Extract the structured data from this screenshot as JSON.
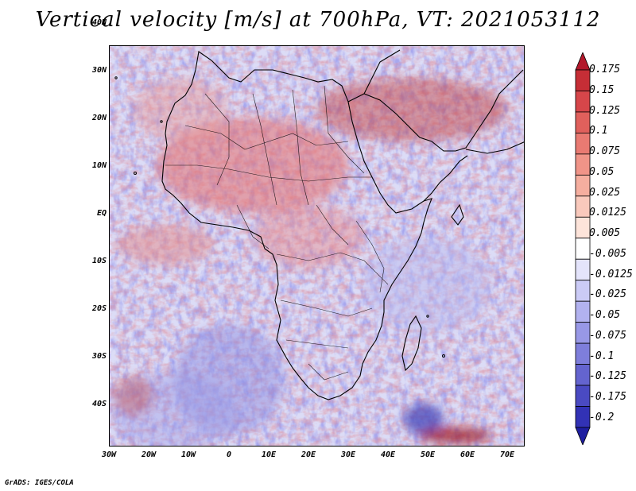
{
  "title": "Vertical velocity [m/s] at 700hPa, VT: 2021053112",
  "credit": "GrADS: IGES/COLA",
  "axes": {
    "lat_ticks": [
      "40N",
      "30N",
      "20N",
      "10N",
      "EQ",
      "10S",
      "20S",
      "30S",
      "40S"
    ],
    "lon_ticks": [
      "30W",
      "20W",
      "10W",
      "0",
      "10E",
      "20E",
      "30E",
      "40E",
      "50E",
      "60E",
      "70E"
    ]
  },
  "colorbar": {
    "levels": [
      "0.175",
      "0.15",
      "0.125",
      "0.1",
      "0.075",
      "0.05",
      "0.025",
      "0.0125",
      "0.005",
      "-0.005",
      "-0.0125",
      "-0.025",
      "-0.05",
      "-0.075",
      "-0.1",
      "-0.125",
      "-0.175",
      "-0.2"
    ],
    "colors": [
      "#b2182b",
      "#c62e36",
      "#d6464a",
      "#e0605c",
      "#e97a72",
      "#f09488",
      "#f5ae9f",
      "#f9c9bc",
      "#fde4da",
      "#ffffff",
      "#e4e4fb",
      "#cbcbf6",
      "#b2b2ef",
      "#9898e6",
      "#7e7edb",
      "#6464cf",
      "#4a4ac2",
      "#3232b5",
      "#1e1ea0"
    ]
  }
}
